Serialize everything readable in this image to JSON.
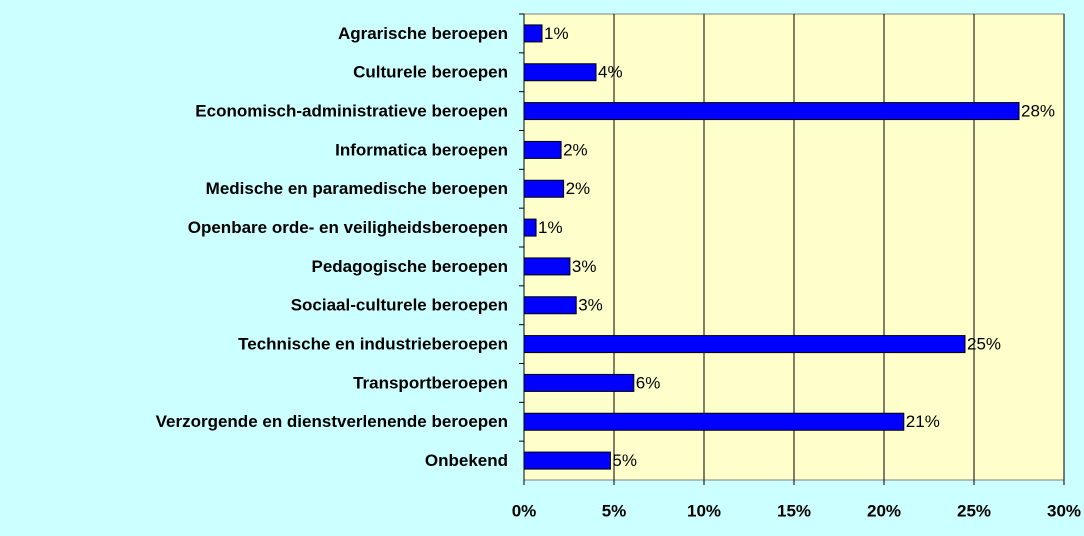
{
  "chart_data": {
    "type": "hbar",
    "categories": [
      "Agrarische beroepen",
      "Culturele beroepen",
      "Economisch-administratieve beroepen",
      "Informatica beroepen",
      "Medische en paramedische beroepen",
      "Openbare orde- en veiligheidsberoepen",
      "Pedagogische beroepen",
      "Sociaal-culturele beroepen",
      "Technische en industrieberoepen",
      "Transportberoepen",
      "Verzorgende en dienstverlenende beroepen",
      "Onbekend"
    ],
    "values": [
      1.0,
      4.0,
      27.5,
      2.06,
      2.2,
      0.67,
      2.55,
      2.9,
      24.5,
      6.1,
      21.1,
      4.8
    ],
    "value_labels": [
      "1%",
      "4%",
      "28%",
      "2%",
      "2%",
      "1%",
      "3%",
      "3%",
      "25%",
      "6%",
      "21%",
      "5%"
    ],
    "color": "#0000ff",
    "xlim": [
      0,
      30
    ],
    "xticks": [
      {
        "value": 0,
        "label": "0%"
      },
      {
        "value": 5,
        "label": "5%"
      },
      {
        "value": 10,
        "label": "10%"
      },
      {
        "value": 15,
        "label": "15%"
      },
      {
        "value": 20,
        "label": "20%"
      },
      {
        "value": 25,
        "label": "25%"
      },
      {
        "value": 30,
        "label": "30%"
      }
    ],
    "grid": true
  }
}
